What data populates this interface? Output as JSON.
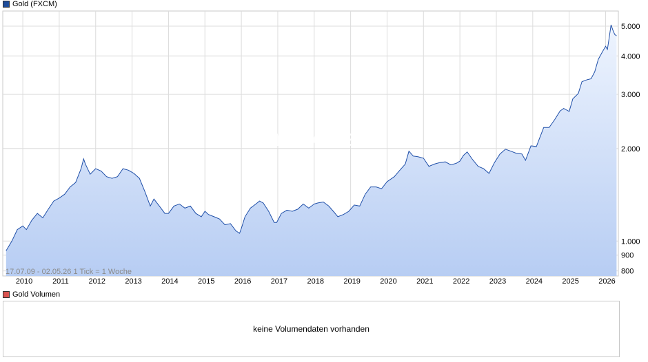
{
  "price_legend": {
    "label": "Gold (FXCM)",
    "color": "#1e4c9a"
  },
  "volume_legend": {
    "label": "Gold Volumen",
    "color": "#d9534f"
  },
  "watermark": "ARIVA.DE",
  "range_text": "17.07.09 - 02.05.26   1 Tick = 1 Woche",
  "volume_message": "keine Volumendaten vorhanden",
  "colors": {
    "line": "#1f4fa8",
    "fill_top": "#eef4fe",
    "fill_bottom": "#b7cdf3",
    "grid": "#dcdcdc"
  },
  "chart_data": {
    "type": "area",
    "y_scale": "log",
    "ylim": [
      770,
      5600
    ],
    "xlim": [
      2009.45,
      2026.35
    ],
    "y_ticks": [
      {
        "value": 5000,
        "label": "5.000"
      },
      {
        "value": 4000,
        "label": "4.000"
      },
      {
        "value": 3000,
        "label": "3.000"
      },
      {
        "value": 2000,
        "label": "2.000"
      },
      {
        "value": 1000,
        "label": "1.000"
      },
      {
        "value": 900,
        "label": "900"
      },
      {
        "value": 800,
        "label": "800"
      }
    ],
    "x_ticks": [
      {
        "value": 2010,
        "label": "2010"
      },
      {
        "value": 2011,
        "label": "2011"
      },
      {
        "value": 2012,
        "label": "2012"
      },
      {
        "value": 2013,
        "label": "2013"
      },
      {
        "value": 2014,
        "label": "2014"
      },
      {
        "value": 2015,
        "label": "2015"
      },
      {
        "value": 2016,
        "label": "2016"
      },
      {
        "value": 2017,
        "label": "2017"
      },
      {
        "value": 2018,
        "label": "2018"
      },
      {
        "value": 2019,
        "label": "2019"
      },
      {
        "value": 2020,
        "label": "2020"
      },
      {
        "value": 2021,
        "label": "2021"
      },
      {
        "value": 2022,
        "label": "2022"
      },
      {
        "value": 2023,
        "label": "2023"
      },
      {
        "value": 2024,
        "label": "2024"
      },
      {
        "value": 2025,
        "label": "2025"
      },
      {
        "value": 2026,
        "label": "2026"
      }
    ],
    "series": [
      {
        "name": "Gold (FXCM)",
        "x": [
          2009.54,
          2009.7,
          2009.85,
          2010.0,
          2010.1,
          2010.25,
          2010.4,
          2010.55,
          2010.7,
          2010.85,
          2011.0,
          2011.15,
          2011.3,
          2011.45,
          2011.6,
          2011.67,
          2011.72,
          2011.85,
          2012.0,
          2012.15,
          2012.3,
          2012.45,
          2012.6,
          2012.75,
          2012.9,
          2013.05,
          2013.2,
          2013.35,
          2013.5,
          2013.6,
          2013.75,
          2013.9,
          2014.0,
          2014.15,
          2014.3,
          2014.45,
          2014.6,
          2014.75,
          2014.9,
          2015.0,
          2015.1,
          2015.25,
          2015.4,
          2015.55,
          2015.7,
          2015.85,
          2015.95,
          2016.0,
          2016.1,
          2016.25,
          2016.4,
          2016.5,
          2016.6,
          2016.75,
          2016.9,
          2016.97,
          2017.1,
          2017.25,
          2017.4,
          2017.55,
          2017.7,
          2017.85,
          2018.0,
          2018.1,
          2018.25,
          2018.4,
          2018.55,
          2018.65,
          2018.8,
          2018.95,
          2019.1,
          2019.25,
          2019.4,
          2019.55,
          2019.7,
          2019.85,
          2020.0,
          2020.2,
          2020.35,
          2020.5,
          2020.6,
          2020.72,
          2020.85,
          2021.0,
          2021.15,
          2021.3,
          2021.45,
          2021.6,
          2021.75,
          2021.9,
          2022.0,
          2022.1,
          2022.2,
          2022.35,
          2022.5,
          2022.65,
          2022.8,
          2022.95,
          2023.1,
          2023.25,
          2023.4,
          2023.55,
          2023.7,
          2023.8,
          2023.95,
          2024.1,
          2024.2,
          2024.3,
          2024.45,
          2024.6,
          2024.75,
          2024.85,
          2025.0,
          2025.1,
          2025.25,
          2025.35,
          2025.5,
          2025.6,
          2025.7,
          2025.8,
          2025.9,
          2026.0,
          2026.05,
          2026.1,
          2026.15,
          2026.2,
          2026.25,
          2026.3
        ],
        "values": [
          930,
          1000,
          1090,
          1120,
          1090,
          1170,
          1230,
          1190,
          1270,
          1350,
          1380,
          1420,
          1500,
          1550,
          1720,
          1850,
          1780,
          1650,
          1720,
          1690,
          1620,
          1600,
          1620,
          1720,
          1700,
          1660,
          1600,
          1450,
          1300,
          1370,
          1300,
          1230,
          1230,
          1300,
          1320,
          1280,
          1300,
          1230,
          1200,
          1250,
          1220,
          1200,
          1180,
          1130,
          1140,
          1080,
          1060,
          1100,
          1200,
          1280,
          1320,
          1350,
          1330,
          1250,
          1150,
          1150,
          1230,
          1260,
          1250,
          1270,
          1320,
          1280,
          1320,
          1330,
          1340,
          1300,
          1240,
          1200,
          1220,
          1250,
          1310,
          1300,
          1420,
          1500,
          1500,
          1480,
          1560,
          1620,
          1700,
          1780,
          1960,
          1890,
          1880,
          1860,
          1750,
          1780,
          1800,
          1810,
          1770,
          1790,
          1820,
          1900,
          1950,
          1840,
          1750,
          1720,
          1660,
          1800,
          1920,
          1990,
          1960,
          1930,
          1920,
          1830,
          2040,
          2030,
          2180,
          2340,
          2340,
          2480,
          2650,
          2700,
          2640,
          2900,
          3020,
          3300,
          3350,
          3370,
          3550,
          3900,
          4100,
          4300,
          4200,
          4600,
          5050,
          4850,
          4700,
          4650
        ]
      }
    ]
  }
}
